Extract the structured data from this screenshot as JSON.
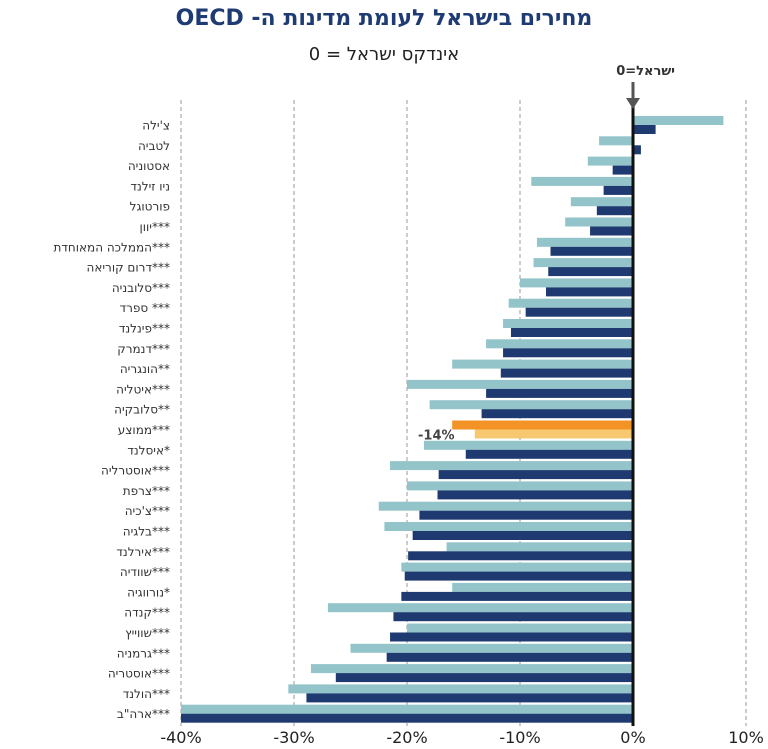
{
  "chart_data": {
    "type": "bar",
    "orientation": "horizontal",
    "title": "מחירים בישראל לעומת מדינות ה- OECD",
    "subtitle": "אינדקס ישראל = 0",
    "annotation": "ישראל=0",
    "xlim": [
      -40,
      10
    ],
    "x_ticks": [
      "-40%",
      "-30%",
      "-20%",
      "-10%",
      "0%",
      "10%"
    ],
    "x_tick_values": [
      -40,
      -30,
      -20,
      -10,
      0,
      10
    ],
    "grid": "vertical dashed",
    "categories": [
      "צ'ילה",
      "לטביה",
      "אסטוניה",
      "ניו זילנד",
      "פורטוגל",
      "יוון***",
      "הממלכה המאוחדת***",
      "דרום קוריאה***",
      "סלובניה***",
      "ספרד ***",
      "פינלנד***",
      "דנמרק***",
      "הונגריה**",
      "איטליה***",
      "סלובקיה**",
      "ממוצע***",
      "איסלנד*",
      "אוסטרליה***",
      "צרפת***",
      "צ'כיה***",
      "בלגיה***",
      "אירלנד***",
      "שוודיה***",
      "נורווגיה*",
      "קנדה***",
      "שווייץ***",
      "גרמניה***",
      "אוסטריה***",
      "הולנד***",
      "ארה\"ב***"
    ],
    "series": [
      {
        "color": "#93c4c9",
        "values": [
          8,
          -3,
          -4,
          -9,
          -5.5,
          -6,
          -8.5,
          -8.8,
          -10,
          -11,
          -11.5,
          -13,
          -16,
          -20,
          -18,
          -16,
          -18.5,
          -21.5,
          -20,
          -22.5,
          -22,
          -16.5,
          -20.5,
          -16,
          -27,
          -20,
          -25,
          -28.5,
          -30.5,
          -40
        ]
      },
      {
        "color": "#1e3a70",
        "values": [
          2,
          0.7,
          -1.8,
          -2.6,
          -3.2,
          -3.8,
          -7.3,
          -7.5,
          -7.7,
          -9.5,
          -10.8,
          -11.5,
          -11.7,
          -13,
          -13.4,
          -14,
          -14.8,
          -17.2,
          -17.3,
          -18.9,
          -19.5,
          -19.9,
          -20.2,
          -20.5,
          -21.2,
          -21.5,
          -21.8,
          -26.3,
          -28.9,
          -40
        ]
      }
    ],
    "highlight": {
      "category": "ממוצע***",
      "colors": [
        "#f39225",
        "#f7c870"
      ],
      "label": "-14%"
    }
  }
}
